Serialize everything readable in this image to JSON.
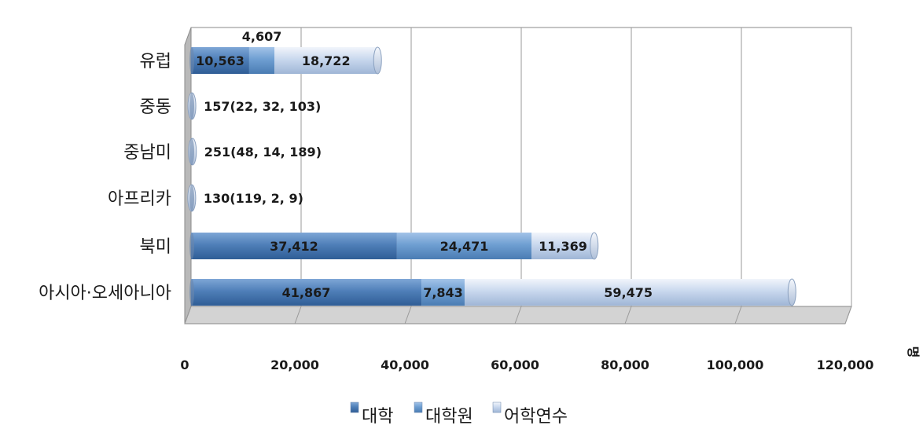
{
  "chart_data": {
    "type": "bar",
    "orientation": "horizontal",
    "stacked": true,
    "three_d": true,
    "categories": [
      "유럽",
      "중동",
      "중남미",
      "아프리카",
      "북미",
      "아시아·오세아니아"
    ],
    "series": [
      {
        "name": "대학",
        "color": "#4f7fb8",
        "values": [
          10563,
          22,
          48,
          119,
          37412,
          41867
        ]
      },
      {
        "name": "대학원",
        "color": "#6f9fd2",
        "values": [
          4607,
          32,
          14,
          2,
          24471,
          7843
        ]
      },
      {
        "name": "어학연수",
        "color": "#c9d8ee",
        "values": [
          18722,
          103,
          189,
          9,
          11369,
          59475
        ]
      }
    ],
    "data_labels": [
      {
        "category": "유럽",
        "series": "대학",
        "text": "10,563"
      },
      {
        "category": "유럽",
        "series": "대학원",
        "text": "4,607",
        "position": "above"
      },
      {
        "category": "유럽",
        "series": "어학연수",
        "text": "18,722"
      },
      {
        "category": "중동",
        "series": "all",
        "text": "157(22, 32, 103)",
        "position": "right"
      },
      {
        "category": "중남미",
        "series": "all",
        "text": "251(48, 14, 189)",
        "position": "right"
      },
      {
        "category": "아프리카",
        "series": "all",
        "text": "130(119, 2, 9)",
        "position": "right"
      },
      {
        "category": "북미",
        "series": "대학",
        "text": "37,412"
      },
      {
        "category": "북미",
        "series": "대학원",
        "text": "24,471"
      },
      {
        "category": "북미",
        "series": "어학연수",
        "text": "11,369"
      },
      {
        "category": "아시아·오세아니아",
        "series": "대학",
        "text": "41,867"
      },
      {
        "category": "아시아·오세아니아",
        "series": "대학원",
        "text": "7,843"
      },
      {
        "category": "아시아·오세아니아",
        "series": "어학연수",
        "text": "59,475"
      }
    ],
    "x_ticks": [
      "0",
      "20,000",
      "40,000",
      "60,000",
      "80,000",
      "100,000",
      "120,000"
    ],
    "xlim": [
      0,
      120000
    ],
    "x_unit": "명",
    "grid": true,
    "legend": {
      "placement": "bottom",
      "items": [
        "대학",
        "대학원",
        "어학연수"
      ]
    }
  }
}
